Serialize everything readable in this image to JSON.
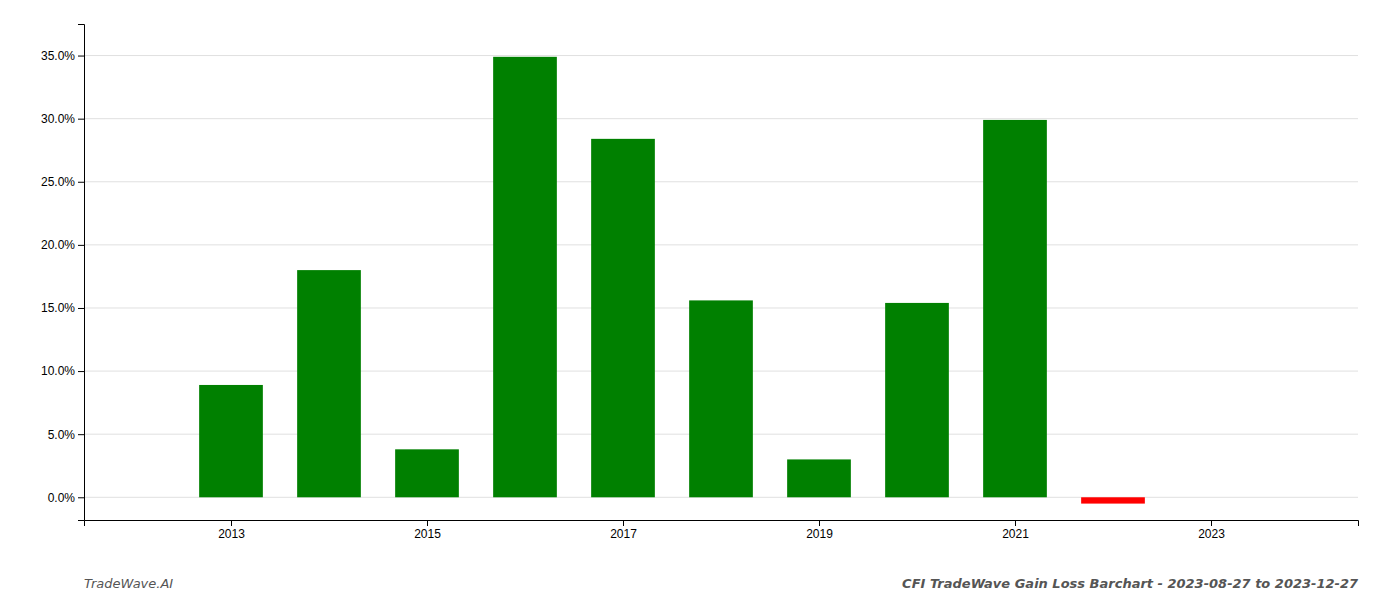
{
  "chart_data": {
    "type": "bar",
    "x": [
      2013,
      2014,
      2015,
      2016,
      2017,
      2018,
      2019,
      2020,
      2021,
      2022
    ],
    "values": [
      0.089,
      0.18,
      0.038,
      0.349,
      0.284,
      0.156,
      0.03,
      0.154,
      0.299,
      -0.005
    ],
    "colors": [
      "#008000",
      "#008000",
      "#008000",
      "#008000",
      "#008000",
      "#008000",
      "#008000",
      "#008000",
      "#008000",
      "#ff0000"
    ],
    "xlim": [
      2011.5,
      2024.5
    ],
    "xticks": [
      2013,
      2015,
      2017,
      2019,
      2021,
      2023
    ],
    "ylim": [
      -0.018,
      0.375
    ],
    "yticks": [
      {
        "value": 0.0,
        "label": "0.0%"
      },
      {
        "value": 0.05,
        "label": "5.0%"
      },
      {
        "value": 0.1,
        "label": "10.0%"
      },
      {
        "value": 0.15,
        "label": "15.0%"
      },
      {
        "value": 0.2,
        "label": "20.0%"
      },
      {
        "value": 0.25,
        "label": "25.0%"
      },
      {
        "value": 0.3,
        "label": "30.0%"
      },
      {
        "value": 0.35,
        "label": "35.0%"
      }
    ],
    "grid": true,
    "annotations": [
      "TradeWave.AI",
      "CFI TradeWave Gain Loss Barchart - 2023-08-27 to 2023-12-27"
    ]
  }
}
